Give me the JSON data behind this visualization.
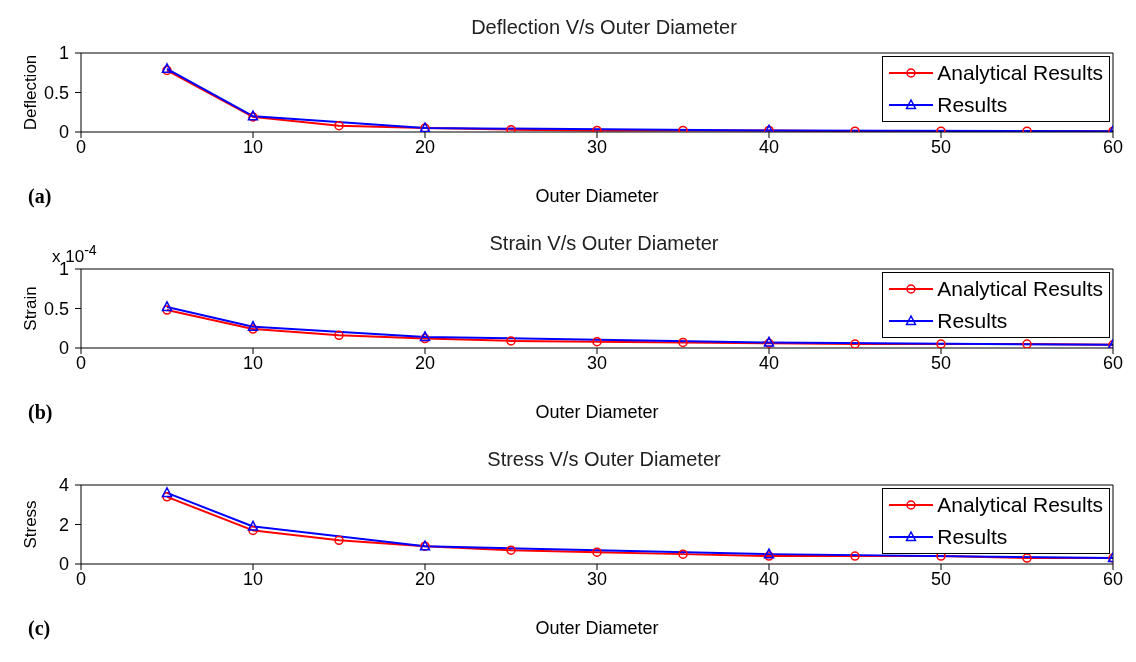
{
  "chart_data": [
    {
      "type": "line",
      "title": "Deflection V/s Outer Diameter",
      "xlabel": "Outer Diameter",
      "ylabel": "Deflection",
      "xlim": [
        0,
        60
      ],
      "xticks": [
        0,
        10,
        20,
        30,
        40,
        50,
        60
      ],
      "ylim": [
        0,
        1
      ],
      "yticks": [
        0,
        0.5,
        1
      ],
      "grid": false,
      "legend": "top right",
      "annotations": [
        "(a)"
      ],
      "series": [
        {
          "name": "Analytical Results",
          "color": "#ff0000",
          "marker": "circle",
          "x": [
            5,
            10,
            15,
            20,
            25,
            30,
            35,
            40,
            45,
            50,
            55,
            60
          ],
          "values": [
            0.78,
            0.19,
            0.08,
            0.05,
            0.03,
            0.02,
            0.02,
            0.02,
            0.01,
            0.01,
            0.01,
            0.01
          ]
        },
        {
          "name": "Results",
          "color": "#0000ff",
          "marker": "triangle",
          "x": [
            5,
            10,
            20,
            40,
            60
          ],
          "values": [
            0.8,
            0.2,
            0.05,
            0.02,
            0.01
          ]
        }
      ]
    },
    {
      "type": "line",
      "title": "Strain V/s Outer Diameter",
      "xlabel": "Outer Diameter",
      "ylabel": "Strain",
      "xlim": [
        0,
        60
      ],
      "xticks": [
        0,
        10,
        20,
        30,
        40,
        50,
        60
      ],
      "ylim": [
        0,
        1
      ],
      "yticks": [
        0,
        0.5,
        1
      ],
      "grid": false,
      "legend": "top right",
      "annotations": [
        "x 10$^{-4}$",
        "(b)"
      ],
      "series": [
        {
          "name": "Analytical Results",
          "color": "#ff0000",
          "marker": "circle",
          "x": [
            5,
            10,
            15,
            20,
            25,
            30,
            35,
            40,
            45,
            50,
            55,
            60
          ],
          "values": [
            0.48,
            0.24,
            0.16,
            0.12,
            0.09,
            0.08,
            0.07,
            0.06,
            0.05,
            0.05,
            0.05,
            0.04
          ]
        },
        {
          "name": "Results",
          "color": "#0000ff",
          "marker": "triangle",
          "x": [
            5,
            10,
            20,
            40,
            60
          ],
          "values": [
            0.52,
            0.27,
            0.14,
            0.07,
            0.04
          ]
        }
      ]
    },
    {
      "type": "line",
      "title": "Stress V/s Outer Diameter",
      "xlabel": "Outer Diameter",
      "ylabel": "Stress",
      "xlim": [
        0,
        60
      ],
      "xticks": [
        0,
        10,
        20,
        30,
        40,
        50,
        60
      ],
      "ylim": [
        0,
        4
      ],
      "yticks": [
        0,
        2,
        4
      ],
      "grid": false,
      "legend": "top right",
      "annotations": [
        "(c)"
      ],
      "series": [
        {
          "name": "Analytical Results",
          "color": "#ff0000",
          "marker": "circle",
          "x": [
            5,
            10,
            15,
            20,
            25,
            30,
            35,
            40,
            45,
            50,
            55,
            60
          ],
          "values": [
            3.4,
            1.7,
            1.2,
            0.9,
            0.7,
            0.6,
            0.5,
            0.4,
            0.4,
            0.4,
            0.3,
            0.3
          ]
        },
        {
          "name": "Results",
          "color": "#0000ff",
          "marker": "triangle",
          "x": [
            5,
            10,
            20,
            40,
            60
          ],
          "values": [
            3.6,
            1.9,
            0.9,
            0.5,
            0.3
          ]
        }
      ]
    }
  ]
}
